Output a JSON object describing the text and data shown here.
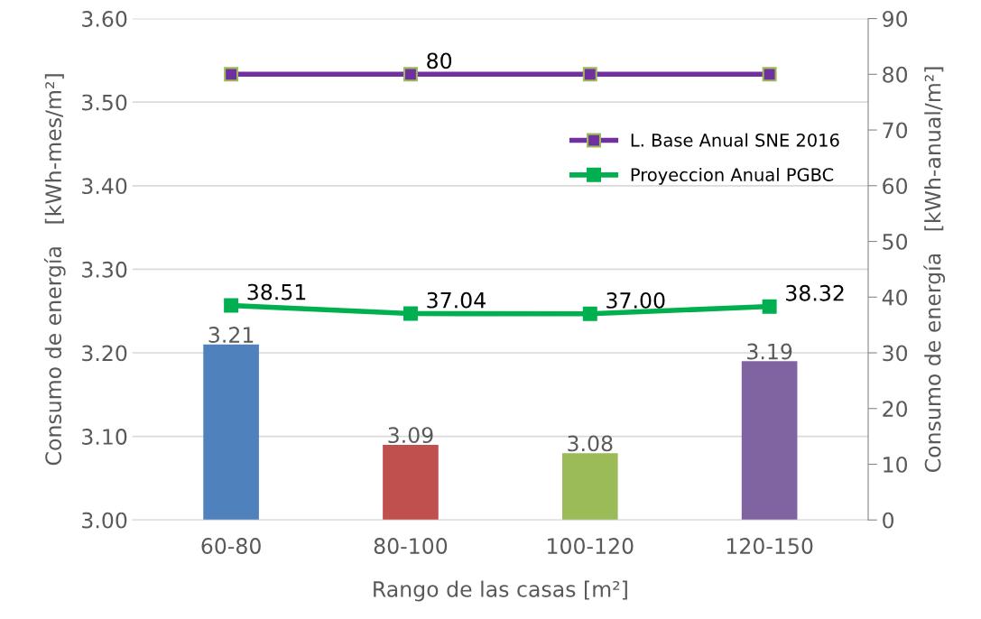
{
  "chart_data": {
    "type": "bar",
    "xlabel": "Rango de las casas [m²]",
    "ylabel": "Consumo de energía   [kWh-mes/m²]",
    "y2label": "Consumo de energía   [kWh-anual/m²]",
    "categories": [
      "60-80",
      "80-100",
      "100-120",
      "120-150"
    ],
    "series": [
      {
        "colors": [
          "#4f81bd",
          "#c0504d",
          "#9bbb59",
          "#8064a2"
        ],
        "values": [
          3.21,
          3.09,
          3.08,
          3.19
        ],
        "data_labels": true
      },
      {
        "type": "line",
        "axis": "y2",
        "name": "L. Base Anual SNE 2016",
        "color": "#7030a0",
        "values": [
          80,
          80,
          80,
          80
        ],
        "value_labels": [
          null,
          "80",
          null,
          null
        ],
        "marker": "square"
      },
      {
        "type": "line",
        "axis": "y2",
        "name": "Proyeccion Anual PGBC",
        "color": "#00b050",
        "values": [
          38.51,
          37.04,
          37.0,
          38.32
        ],
        "value_labels": [
          "38.51",
          "37.04",
          "37.00",
          "38.32"
        ],
        "marker": "square"
      }
    ],
    "ylim": [
      3.0,
      3.6
    ],
    "yticks": [
      {
        "value": 3.0,
        "label": "3.00"
      },
      {
        "value": 3.1,
        "label": "3.10"
      },
      {
        "value": 3.2,
        "label": "3.20"
      },
      {
        "value": 3.3,
        "label": "3.30"
      },
      {
        "value": 3.4,
        "label": "3.40"
      },
      {
        "value": 3.5,
        "label": "3.50"
      },
      {
        "value": 3.6,
        "label": "3.60"
      }
    ],
    "y2lim": [
      0,
      90
    ],
    "y2ticks": [
      0,
      10,
      20,
      30,
      40,
      50,
      60,
      70,
      80,
      90
    ],
    "grid": "y",
    "legend": "right"
  }
}
